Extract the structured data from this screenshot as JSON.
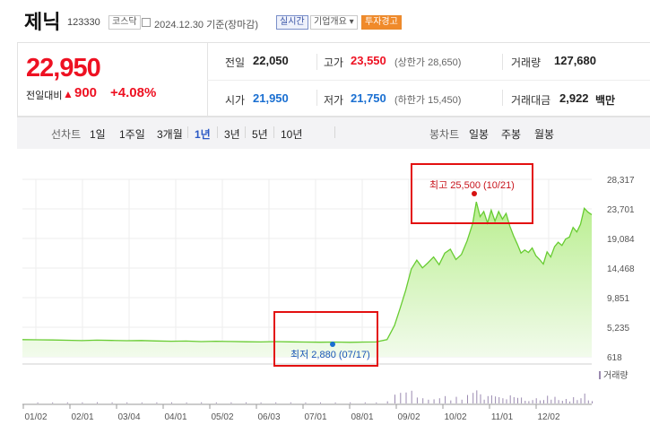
{
  "header": {
    "name": "제닉",
    "code": "123330",
    "market_tag": "코스닥",
    "date": "2024.12.30",
    "date_suffix": "기준(장마감)",
    "realtime_btn": "실시간",
    "company_btn": "기업개요 ▾",
    "warning_btn": "투자경고"
  },
  "quote": {
    "price": "22,950",
    "prev_label": "전일대비",
    "change_arrow": "▲",
    "change": "900",
    "change_pct": "+4.08%",
    "prev_close_label": "전일",
    "prev_close": "22,050",
    "high_label": "고가",
    "high": "23,550",
    "upper_limit": "(상한가 28,650)",
    "volume_label": "거래량",
    "volume": "127,680",
    "open_label": "시가",
    "open": "21,950",
    "low_label": "저가",
    "low": "21,750",
    "lower_limit": "(하한가 15,450)",
    "amount_label": "거래대금",
    "amount": "2,922",
    "amount_unit": "백만"
  },
  "tabs": {
    "line_label": "선차트",
    "line_periods": [
      "1일",
      "1주일",
      "3개월",
      "1년",
      "3년",
      "5년",
      "10년"
    ],
    "active": "1년",
    "candle_label": "봉차트",
    "candle_periods": [
      "일봉",
      "주봉",
      "월봉"
    ]
  },
  "chart_data": {
    "type": "area",
    "x_ticks": [
      "01/02",
      "02/01",
      "03/04",
      "04/01",
      "05/02",
      "06/03",
      "07/01",
      "08/01",
      "09/02",
      "10/02",
      "11/01",
      "12/02"
    ],
    "y_ticks": [
      "28,317",
      "23,701",
      "19,084",
      "14,468",
      "9,851",
      "5,235",
      "618"
    ],
    "ylim": [
      618,
      28317
    ],
    "series": [
      {
        "points": [
          [
            0,
            3300
          ],
          [
            8,
            3280
          ],
          [
            16,
            3250
          ],
          [
            24,
            3200
          ],
          [
            32,
            3150
          ],
          [
            40,
            3220
          ],
          [
            48,
            3180
          ],
          [
            56,
            3130
          ],
          [
            64,
            3160
          ],
          [
            72,
            3100
          ],
          [
            80,
            3050
          ],
          [
            88,
            3080
          ],
          [
            96,
            3000
          ],
          [
            104,
            3050
          ],
          [
            112,
            3010
          ],
          [
            120,
            2970
          ],
          [
            128,
            2940
          ],
          [
            136,
            3000
          ],
          [
            144,
            2960
          ],
          [
            152,
            2930
          ],
          [
            160,
            2900
          ],
          [
            168,
            2920
          ],
          [
            176,
            2880
          ],
          [
            184,
            2920
          ],
          [
            190,
            2940
          ],
          [
            196,
            3300
          ],
          [
            200,
            5500
          ],
          [
            203,
            8200
          ],
          [
            206,
            11000
          ],
          [
            209,
            14300
          ],
          [
            212,
            15700
          ],
          [
            215,
            14500
          ],
          [
            218,
            15300
          ],
          [
            221,
            16200
          ],
          [
            224,
            15000
          ],
          [
            227,
            16800
          ],
          [
            230,
            17400
          ],
          [
            233,
            15800
          ],
          [
            236,
            16600
          ],
          [
            239,
            18700
          ],
          [
            242,
            21400
          ],
          [
            244,
            24800
          ],
          [
            246,
            22500
          ],
          [
            248,
            23300
          ],
          [
            250,
            21500
          ],
          [
            252,
            23500
          ],
          [
            254,
            21800
          ],
          [
            256,
            23300
          ],
          [
            258,
            22100
          ],
          [
            260,
            23000
          ],
          [
            262,
            21000
          ],
          [
            264,
            19500
          ],
          [
            266,
            18200
          ],
          [
            268,
            16800
          ],
          [
            270,
            17300
          ],
          [
            272,
            16900
          ],
          [
            274,
            17600
          ],
          [
            276,
            16400
          ],
          [
            278,
            15800
          ],
          [
            280,
            15100
          ],
          [
            282,
            17000
          ],
          [
            284,
            16200
          ],
          [
            286,
            17800
          ],
          [
            288,
            18500
          ],
          [
            290,
            18000
          ],
          [
            292,
            19000
          ],
          [
            294,
            19300
          ],
          [
            296,
            20800
          ],
          [
            298,
            20100
          ],
          [
            300,
            21300
          ],
          [
            302,
            23800
          ],
          [
            304,
            23200
          ],
          [
            306,
            22800
          ]
        ],
        "y_unit": "원"
      }
    ],
    "volume_label": "거래량",
    "annotations": {
      "high_label": "최고 25,500 (10/21)",
      "low_label": "최저 2,880 (07/17)"
    }
  },
  "colors": {
    "up": "#e81111",
    "down": "#1a6fd1",
    "line": "#68cc32",
    "fill_top": "#b9ee8f",
    "annotation_box": "#e31010"
  }
}
